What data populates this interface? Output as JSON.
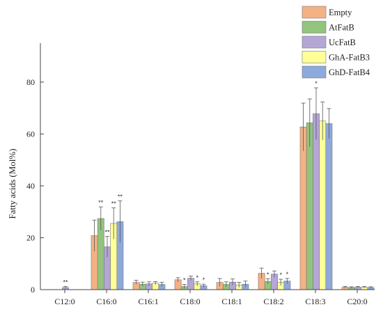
{
  "chart_data": {
    "type": "bar",
    "ylabel": "Fatty acids (Mol%)",
    "ylim": [
      0,
      95
    ],
    "yticks": [
      0,
      20,
      40,
      60,
      80
    ],
    "categories": [
      "C12:0",
      "C16:0",
      "C16:1",
      "C18:0",
      "C18:1",
      "C18:2",
      "C18:3",
      "C20:0"
    ],
    "legend_position": "top-right",
    "series": [
      {
        "name": "Empty",
        "color": "#f4b183",
        "values": [
          0,
          20.8,
          2.8,
          3.8,
          2.8,
          6.3,
          62.7,
          0.9
        ],
        "errors": [
          0,
          6.0,
          0.8,
          0.8,
          1.5,
          2.0,
          9.2,
          0.3
        ],
        "stars": [
          "",
          "",
          "",
          "",
          "",
          "",
          "",
          ""
        ]
      },
      {
        "name": "AtFatB",
        "color": "#93c47d",
        "values": [
          0,
          27.4,
          2.1,
          1.2,
          2.0,
          3.2,
          64.3,
          0.8
        ],
        "errors": [
          0,
          4.5,
          0.8,
          0.8,
          1.0,
          1.0,
          9.2,
          0.3
        ],
        "stars": [
          "",
          "**",
          "",
          "*",
          "",
          "*",
          "",
          ""
        ]
      },
      {
        "name": "UcFatB",
        "color": "#b4a7d6",
        "values": [
          0.8,
          16.5,
          2.2,
          4.4,
          2.9,
          6.0,
          67.8,
          0.9
        ],
        "errors": [
          0.4,
          4.0,
          0.8,
          0.8,
          1.2,
          1.2,
          10.0,
          0.3
        ],
        "stars": [
          "**",
          "**",
          "",
          "",
          "",
          "",
          "*",
          ""
        ]
      },
      {
        "name": "GhA-FatB3",
        "color": "#ffff99",
        "values": [
          0,
          25.5,
          2.5,
          2.2,
          1.8,
          2.8,
          65.0,
          0.9
        ],
        "errors": [
          0,
          6.0,
          0.6,
          0.8,
          1.0,
          1.2,
          7.3,
          0.3
        ],
        "stars": [
          "",
          "**",
          "",
          "*",
          "",
          "*",
          "",
          ""
        ]
      },
      {
        "name": "GhD-FatB4",
        "color": "#8ea9db",
        "values": [
          0,
          26.2,
          2.0,
          1.5,
          2.1,
          3.3,
          64.0,
          0.8
        ],
        "errors": [
          0,
          8.0,
          0.8,
          0.6,
          1.2,
          1.0,
          5.8,
          0.3
        ],
        "stars": [
          "",
          "**",
          "",
          "*",
          "",
          "*",
          "",
          ""
        ]
      }
    ]
  }
}
